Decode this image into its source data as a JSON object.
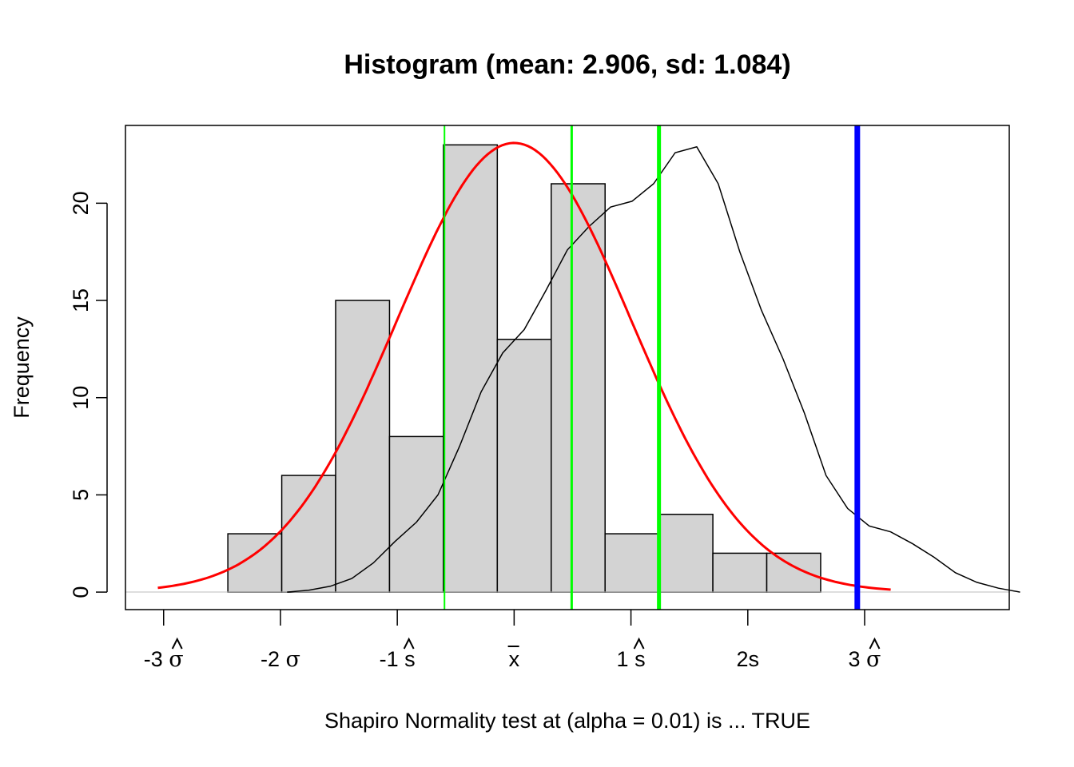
{
  "chart_data": {
    "type": "bar",
    "title": "Histogram (mean: 2.906, sd: 1.084)",
    "xlabel": "Shapiro Normality test at (alpha = 0.01) is ... TRUE",
    "ylabel": "Frequency",
    "mean": 2.906,
    "sd": 1.084,
    "bins": [
      {
        "x0": 0.25,
        "x1": 0.75,
        "count": 3
      },
      {
        "x0": 0.75,
        "x1": 1.25,
        "count": 6
      },
      {
        "x0": 1.25,
        "x1": 1.75,
        "count": 15
      },
      {
        "x0": 1.75,
        "x1": 2.25,
        "count": 8
      },
      {
        "x0": 2.25,
        "x1": 2.75,
        "count": 23
      },
      {
        "x0": 2.75,
        "x1": 3.25,
        "count": 13
      },
      {
        "x0": 3.25,
        "x1": 3.75,
        "count": 21
      },
      {
        "x0": 3.75,
        "x1": 4.25,
        "count": 3
      },
      {
        "x0": 4.25,
        "x1": 4.75,
        "count": 4
      },
      {
        "x0": 4.75,
        "x1": 5.25,
        "count": 2
      },
      {
        "x0": 5.25,
        "x1": 5.75,
        "count": 2
      }
    ],
    "xlim": [
      -0.7,
      7.5
    ],
    "ylim": [
      -0.9,
      24
    ],
    "yticks": [
      0,
      5,
      10,
      15,
      20
    ],
    "xticks": [
      {
        "value": -0.346,
        "prefix": "-3 ",
        "symbol": "σ",
        "hat": true
      },
      {
        "value": 0.738,
        "prefix": "-2 ",
        "symbol": "σ",
        "hat": false
      },
      {
        "value": 1.822,
        "prefix": "-1 ",
        "symbol": "s",
        "hat": true
      },
      {
        "value": 2.906,
        "prefix": "",
        "symbol": "x",
        "bar": true
      },
      {
        "value": 3.99,
        "prefix": "1 ",
        "symbol": "s",
        "hat": true
      },
      {
        "value": 5.074,
        "prefix": "2s",
        "symbol": "",
        "hat": false
      },
      {
        "value": 6.158,
        "prefix": "3 ",
        "symbol": "σ",
        "hat": true
      }
    ],
    "vlines": [
      {
        "x": 2.26,
        "color": "#00ff00",
        "width": 2
      },
      {
        "x": 3.44,
        "color": "#00ff00",
        "width": 3
      },
      {
        "x": 4.25,
        "color": "#00ff00",
        "width": 5
      },
      {
        "x": 6.09,
        "color": "#0000ff",
        "width": 7
      }
    ],
    "normal_curve": {
      "color": "#ff0000",
      "peak": 23.1,
      "x_range": [
        -0.4,
        6.4
      ]
    },
    "density_curve": {
      "color": "#000000",
      "points": [
        [
          0.8,
          0.0
        ],
        [
          1.0,
          0.1
        ],
        [
          1.2,
          0.3
        ],
        [
          1.4,
          0.7
        ],
        [
          1.6,
          1.5
        ],
        [
          1.8,
          2.6
        ],
        [
          2.0,
          3.6
        ],
        [
          2.2,
          5.0
        ],
        [
          2.4,
          7.5
        ],
        [
          2.6,
          10.3
        ],
        [
          2.8,
          12.3
        ],
        [
          3.0,
          13.5
        ],
        [
          3.2,
          15.5
        ],
        [
          3.4,
          17.6
        ],
        [
          3.6,
          18.8
        ],
        [
          3.8,
          19.8
        ],
        [
          4.0,
          20.1
        ],
        [
          4.2,
          21.0
        ],
        [
          4.4,
          22.6
        ],
        [
          4.6,
          22.9
        ],
        [
          4.8,
          21.0
        ],
        [
          5.0,
          17.5
        ],
        [
          5.2,
          14.5
        ],
        [
          5.4,
          12.0
        ],
        [
          5.6,
          9.2
        ],
        [
          5.8,
          6.0
        ],
        [
          6.0,
          4.3
        ],
        [
          6.2,
          3.4
        ],
        [
          6.4,
          3.1
        ],
        [
          6.6,
          2.5
        ],
        [
          6.8,
          1.8
        ],
        [
          7.0,
          1.0
        ],
        [
          7.2,
          0.5
        ],
        [
          7.4,
          0.2
        ],
        [
          7.6,
          0.0
        ]
      ]
    }
  }
}
